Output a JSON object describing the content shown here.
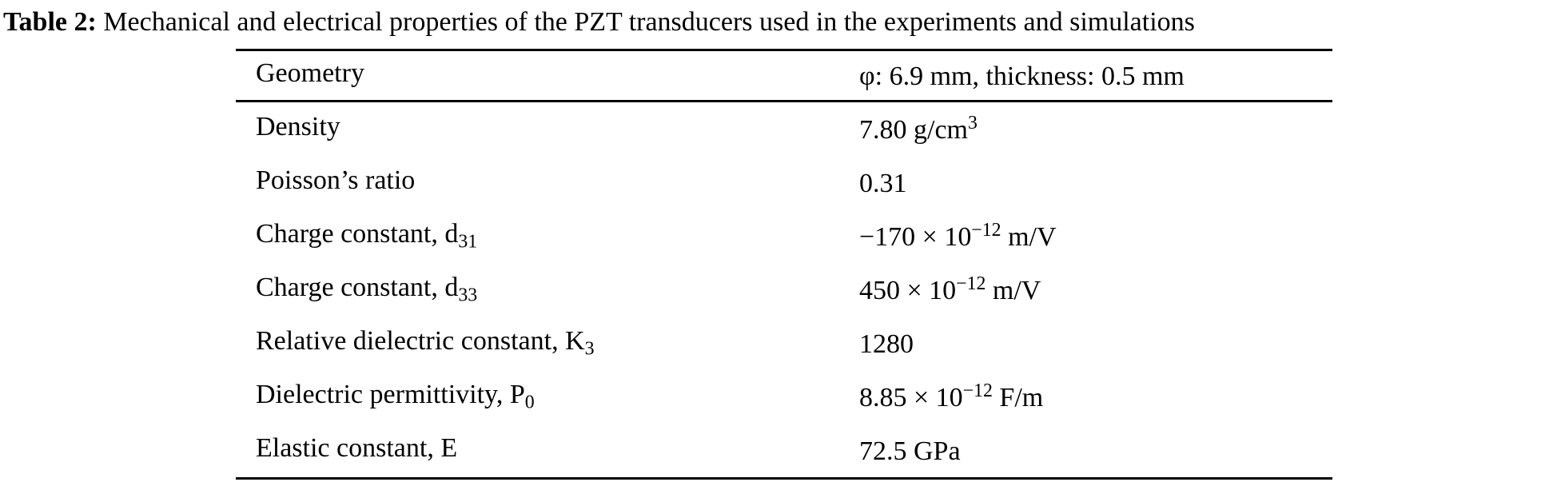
{
  "caption": {
    "label": "Table 2:",
    "text": "  Mechanical and electrical properties of the PZT transducers used in the experiments and simulations"
  },
  "table": {
    "rows": [
      {
        "property": "Geometry",
        "value": "φ: 6.9 mm, thickness: 0.5 mm"
      },
      {
        "property": "Density",
        "value": "7.80 g/cm",
        "value_sup": "3"
      },
      {
        "property": "Poisson’s ratio",
        "value": "0.31"
      },
      {
        "property": "Charge constant, d",
        "property_sub": "31",
        "value": "−170 × 10",
        "value_sup": "−12",
        "value_post": " m/V"
      },
      {
        "property": "Charge constant, d",
        "property_sub": "33",
        "value": "450 × 10",
        "value_sup": "−12",
        "value_post": " m/V"
      },
      {
        "property": "Relative dielectric constant, K",
        "property_sub": "3",
        "value": "1280"
      },
      {
        "property": "Dielectric permittivity, P",
        "property_sub": "0",
        "value": "8.85 × 10",
        "value_sup": "−12",
        "value_post": " F/m"
      },
      {
        "property": "Elastic constant, E",
        "value": "72.5 GPa"
      }
    ]
  }
}
